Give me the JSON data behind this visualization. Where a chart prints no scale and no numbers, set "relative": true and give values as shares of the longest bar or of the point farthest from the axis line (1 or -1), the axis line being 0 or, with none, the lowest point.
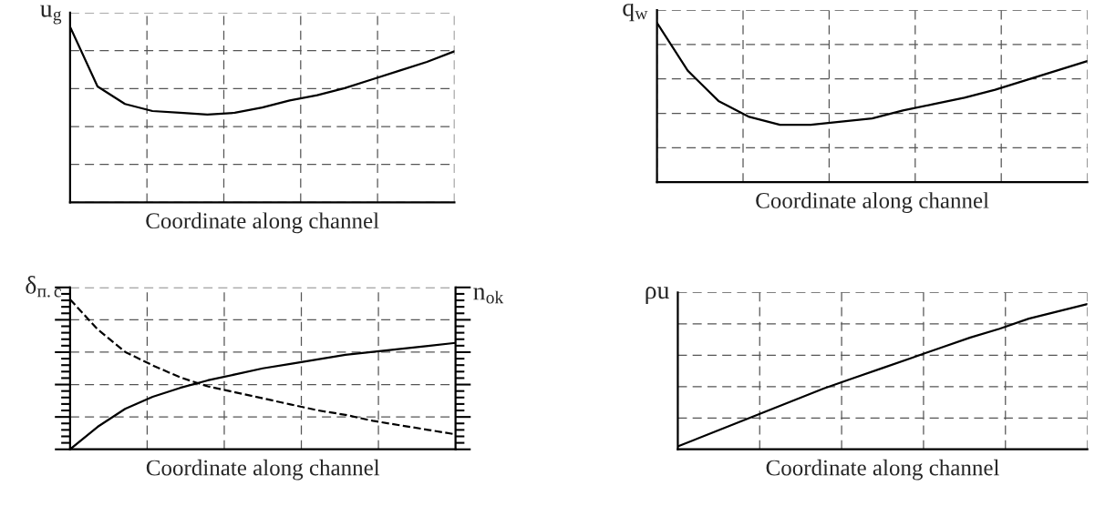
{
  "chart_data": [
    {
      "type": "line",
      "relative": true,
      "tick_labels": false,
      "grid": true,
      "xlabel": "Coordinate along channel",
      "ylabel": "u$_{g}$",
      "categories": [
        null,
        null,
        null,
        null,
        null,
        null,
        null,
        null,
        null,
        null,
        null,
        null,
        null,
        null,
        null
      ],
      "series": [
        {
          "color": "#000000",
          "line_style": "solid",
          "values": [
            1,
            0.66,
            0.56,
            0.52,
            0.51,
            0.5,
            0.51,
            0.54,
            0.58,
            0.61,
            0.65,
            0.7,
            0.75,
            0.8,
            0.86
          ]
        }
      ]
    },
    {
      "type": "line",
      "relative": true,
      "tick_labels": false,
      "grid": true,
      "xlabel": "Coordinate along channel",
      "ylabel": "q$_{w}$",
      "categories": [
        null,
        null,
        null,
        null,
        null,
        null,
        null,
        null,
        null,
        null,
        null,
        null,
        null,
        null,
        null
      ],
      "series": [
        {
          "color": "#000000",
          "line_style": "solid",
          "values": [
            1,
            0.7,
            0.51,
            0.41,
            0.36,
            0.36,
            0.38,
            0.4,
            0.45,
            0.49,
            0.53,
            0.58,
            0.64,
            0.7,
            0.76
          ]
        }
      ]
    },
    {
      "type": "line",
      "relative": true,
      "tick_labels": false,
      "grid": true,
      "xlabel": "Coordinate along channel",
      "ylabel": "δ$_{п.с}$",
      "y2label": "n$_{ok}$",
      "categories": [
        null,
        null,
        null,
        null,
        null,
        null,
        null,
        null,
        null,
        null,
        null,
        null,
        null,
        null,
        null
      ],
      "series": [
        {
          "color": "#000000",
          "line_style": "dashed",
          "values": [
            1,
            0.8,
            0.65,
            0.56,
            0.48,
            0.42,
            0.38,
            0.34,
            0.3,
            0.26,
            0.23,
            0.19,
            0.16,
            0.13,
            0.1
          ]
        },
        {
          "color": "#000000",
          "line_style": "solid",
          "values": [
            0,
            0.15,
            0.27,
            0.35,
            0.41,
            0.46,
            0.5,
            0.54,
            0.57,
            0.6,
            0.63,
            0.65,
            0.67,
            0.69,
            0.71
          ]
        }
      ]
    },
    {
      "type": "line",
      "relative": true,
      "tick_labels": false,
      "grid": true,
      "xlabel": "Coordinate along channel",
      "ylabel": "ρu",
      "categories": [
        null,
        null,
        null,
        null,
        null,
        null,
        null,
        null,
        null,
        null,
        null,
        null,
        null,
        null,
        null
      ],
      "series": [
        {
          "color": "#000000",
          "line_style": "solid",
          "values": [
            0.02,
            0.1,
            0.18,
            0.26,
            0.34,
            0.42,
            0.49,
            0.56,
            0.63,
            0.7,
            0.77,
            0.83,
            0.9,
            0.95,
            1
          ]
        }
      ]
    }
  ]
}
